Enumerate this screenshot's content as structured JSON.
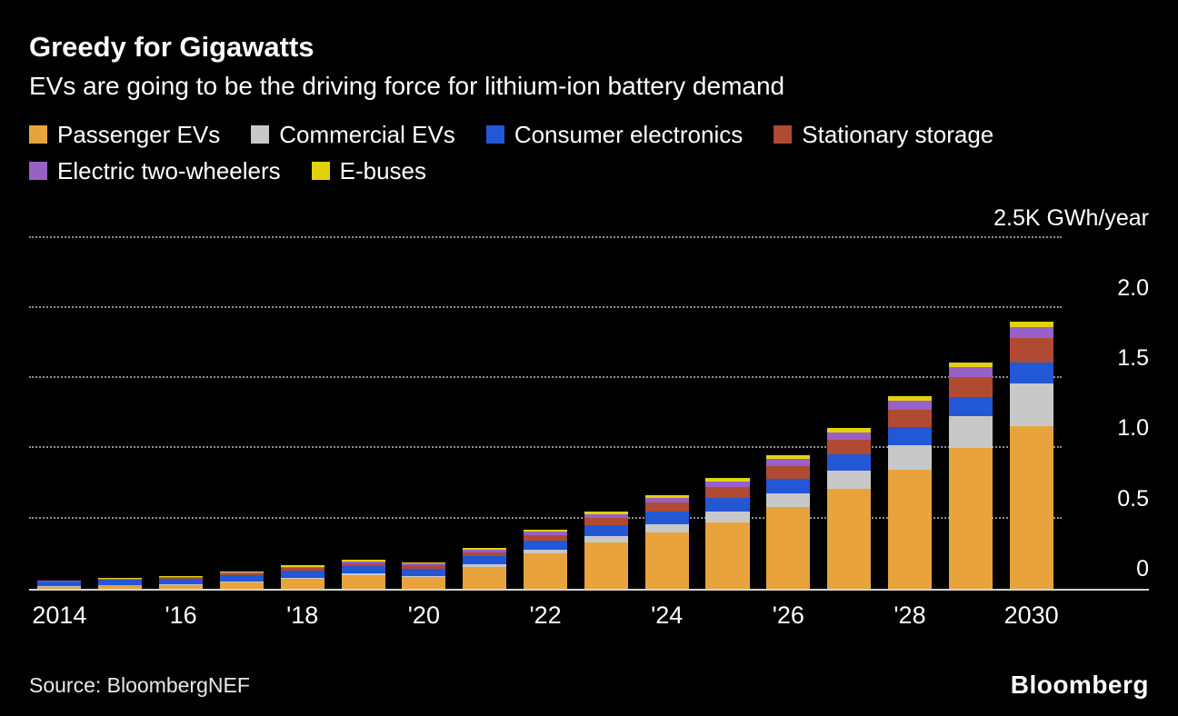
{
  "footer": {
    "source": "Source: BloombergNEF",
    "logo": "Bloomberg"
  },
  "chart_data": {
    "type": "bar",
    "stacked": true,
    "title": "Greedy for Gigawatts",
    "subtitle": "EVs are going to be the driving force for lithium-ion battery demand",
    "xlabel": "",
    "ylabel": "GWh/year",
    "ylim": [
      0,
      2.5
    ],
    "grid": "dotted-horizontal",
    "legend_position": "top",
    "background_color": "#000000",
    "yticks": [
      {
        "value": 2.5,
        "label": "2.5K GWh/year"
      },
      {
        "value": 2.0,
        "label": "2.0"
      },
      {
        "value": 1.5,
        "label": "1.5"
      },
      {
        "value": 1.0,
        "label": "1.0"
      },
      {
        "value": 0.5,
        "label": "0.5"
      },
      {
        "value": 0,
        "label": "0"
      }
    ],
    "series": [
      {
        "name": "Passenger EVs",
        "color": "#E8A33D"
      },
      {
        "name": "Commercial EVs",
        "color": "#C8C8C8"
      },
      {
        "name": "Consumer electronics",
        "color": "#2257D5"
      },
      {
        "name": "Stationary storage",
        "color": "#B04A32"
      },
      {
        "name": "Electric two-wheelers",
        "color": "#9960C8"
      },
      {
        "name": "E-buses",
        "color": "#E2D20C"
      }
    ],
    "years": [
      {
        "year": 2014,
        "label": "2014",
        "values": [
          0.015,
          0.003,
          0.03,
          0.004,
          0.005,
          0.003
        ]
      },
      {
        "year": 2015,
        "label": "",
        "values": [
          0.022,
          0.004,
          0.035,
          0.006,
          0.006,
          0.004
        ]
      },
      {
        "year": 2016,
        "label": "'16",
        "values": [
          0.028,
          0.005,
          0.038,
          0.008,
          0.006,
          0.005
        ]
      },
      {
        "year": 2017,
        "label": "",
        "values": [
          0.045,
          0.008,
          0.042,
          0.012,
          0.008,
          0.007
        ]
      },
      {
        "year": 2018,
        "label": "'18",
        "values": [
          0.07,
          0.01,
          0.048,
          0.018,
          0.01,
          0.01
        ]
      },
      {
        "year": 2019,
        "label": "",
        "values": [
          0.095,
          0.012,
          0.052,
          0.022,
          0.012,
          0.012
        ]
      },
      {
        "year": 2020,
        "label": "'20",
        "values": [
          0.08,
          0.012,
          0.052,
          0.022,
          0.012,
          0.012
        ]
      },
      {
        "year": 2021,
        "label": "",
        "values": [
          0.155,
          0.018,
          0.058,
          0.03,
          0.018,
          0.014
        ]
      },
      {
        "year": 2022,
        "label": "'22",
        "values": [
          0.25,
          0.028,
          0.065,
          0.04,
          0.024,
          0.016
        ]
      },
      {
        "year": 2023,
        "label": "",
        "values": [
          0.33,
          0.045,
          0.075,
          0.052,
          0.03,
          0.018
        ]
      },
      {
        "year": 2024,
        "label": "'24",
        "values": [
          0.4,
          0.062,
          0.085,
          0.065,
          0.036,
          0.02
        ]
      },
      {
        "year": 2025,
        "label": "",
        "values": [
          0.47,
          0.08,
          0.095,
          0.078,
          0.042,
          0.022
        ]
      },
      {
        "year": 2026,
        "label": "'26",
        "values": [
          0.58,
          0.1,
          0.105,
          0.09,
          0.048,
          0.025
        ]
      },
      {
        "year": 2027,
        "label": "",
        "values": [
          0.71,
          0.13,
          0.115,
          0.105,
          0.055,
          0.028
        ]
      },
      {
        "year": 2028,
        "label": "'28",
        "values": [
          0.85,
          0.175,
          0.125,
          0.125,
          0.062,
          0.032
        ]
      },
      {
        "year": 2029,
        "label": "",
        "values": [
          1.0,
          0.23,
          0.135,
          0.145,
          0.07,
          0.035
        ]
      },
      {
        "year": 2030,
        "label": "2030",
        "values": [
          1.16,
          0.3,
          0.15,
          0.175,
          0.08,
          0.04
        ]
      }
    ]
  }
}
